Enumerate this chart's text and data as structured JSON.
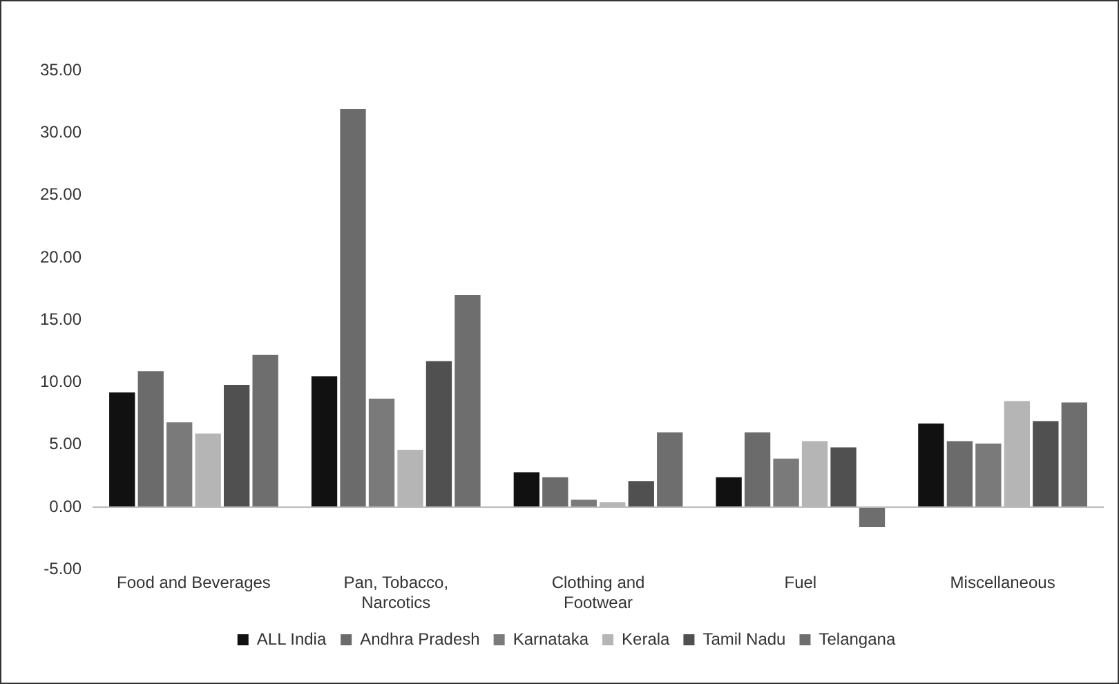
{
  "chart_data": {
    "type": "bar",
    "categories": [
      "Food and Beverages",
      "Pan, Tobacco, Narcotics",
      "Clothing and Footwear",
      "Fuel",
      "Miscellaneous"
    ],
    "series": [
      {
        "name": "ALL India",
        "color": "#111111",
        "values": [
          9.2,
          10.5,
          2.8,
          2.4,
          6.7
        ]
      },
      {
        "name": "Andhra Pradesh",
        "color": "#6b6b6b",
        "values": [
          10.9,
          31.9,
          2.4,
          6.0,
          5.3
        ]
      },
      {
        "name": "Karnataka",
        "color": "#7a7a7a",
        "values": [
          6.8,
          8.7,
          0.6,
          3.9,
          5.1
        ]
      },
      {
        "name": "Kerala",
        "color": "#b5b5b5",
        "values": [
          5.9,
          4.6,
          0.4,
          5.3,
          8.5
        ]
      },
      {
        "name": "Tamil Nadu",
        "color": "#505050",
        "values": [
          9.8,
          11.7,
          2.1,
          4.8,
          6.9
        ]
      },
      {
        "name": "Telangana",
        "color": "#6e6e6e",
        "values": [
          12.2,
          17.0,
          6.0,
          -1.6,
          8.4
        ]
      }
    ],
    "ylim": [
      -5,
      35
    ],
    "yticks": [
      {
        "value": -5,
        "label": "-5.00"
      },
      {
        "value": 0,
        "label": "0.00"
      },
      {
        "value": 5,
        "label": "5.00"
      },
      {
        "value": 10,
        "label": "10.00"
      },
      {
        "value": 15,
        "label": "15.00"
      },
      {
        "value": 20,
        "label": "20.00"
      },
      {
        "value": 25,
        "label": "25.00"
      },
      {
        "value": 30,
        "label": "30.00"
      },
      {
        "value": 35,
        "label": "35.00"
      }
    ],
    "ref_lines": [
      {
        "axis": "y",
        "value": 0,
        "color": "#bbbbbb"
      }
    ],
    "grid": false,
    "legend": "bottom"
  }
}
